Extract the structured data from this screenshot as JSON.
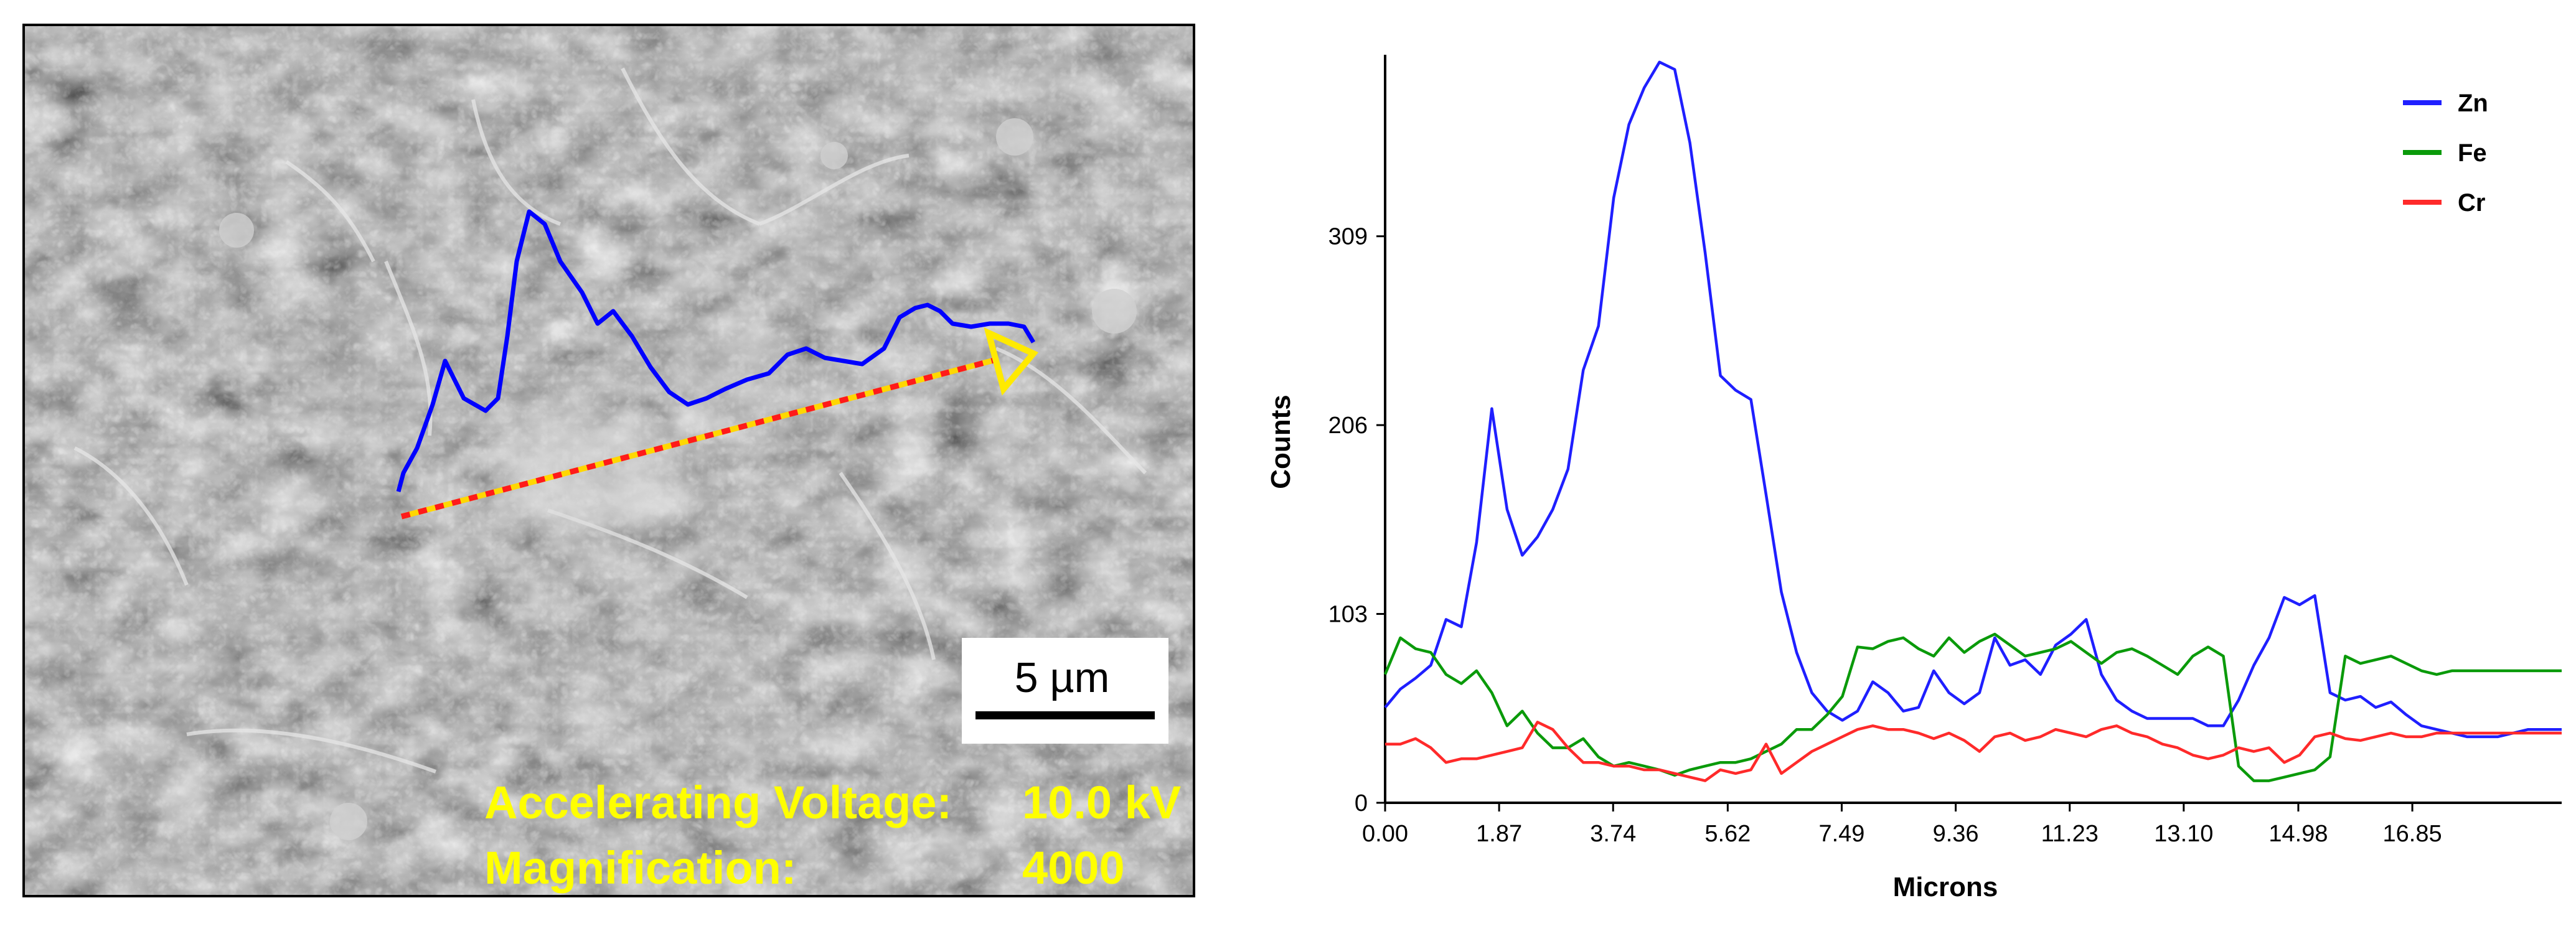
{
  "sem": {
    "scale_label": "5 µm",
    "voltage_label": "Accelerating Voltage:",
    "voltage_value": "10.0 kV",
    "magnification_label": "Magnification:",
    "magnification_value": "4000",
    "colors": {
      "text": "#ffff00",
      "profile": "#0000ff",
      "scan_line_a": "#ff2020",
      "scan_line_b": "#ffd700"
    }
  },
  "chart_data": {
    "type": "line",
    "title": "",
    "xlabel": "Microns",
    "ylabel": "Counts",
    "xlim": [
      0,
      19.3
    ],
    "ylim": [
      0,
      408
    ],
    "x_ticks": [
      0.0,
      1.87,
      3.74,
      5.62,
      7.49,
      9.36,
      11.23,
      13.1,
      14.98,
      16.85
    ],
    "x_tick_labels": [
      "0.00",
      "1.87",
      "3.74",
      "5.62",
      "7.49",
      "9.36",
      "11.23",
      "13.10",
      "14.98",
      "16.85"
    ],
    "y_ticks": [
      0,
      103,
      206,
      309
    ],
    "y_tick_labels": [
      "0",
      "103",
      "206",
      "309"
    ],
    "grid": false,
    "legend_position": "top-right",
    "series": [
      {
        "name": "Zn",
        "color": "#1f1fff",
        "x": [
          0.0,
          0.25,
          0.5,
          0.75,
          1.0,
          1.25,
          1.5,
          1.75,
          2.0,
          2.25,
          2.5,
          2.75,
          3.0,
          3.25,
          3.5,
          3.75,
          4.0,
          4.25,
          4.5,
          4.75,
          5.0,
          5.25,
          5.5,
          5.75,
          6.0,
          6.25,
          6.5,
          6.75,
          7.0,
          7.25,
          7.5,
          7.75,
          8.0,
          8.25,
          8.5,
          8.75,
          9.0,
          9.25,
          9.5,
          9.75,
          10.0,
          10.25,
          10.5,
          10.75,
          11.0,
          11.25,
          11.5,
          11.75,
          12.0,
          12.25,
          12.5,
          12.75,
          13.0,
          13.25,
          13.5,
          13.75,
          14.0,
          14.25,
          14.5,
          14.75,
          15.0,
          15.25,
          15.5,
          15.75,
          16.0,
          16.25,
          16.5,
          16.75,
          17.0,
          17.25,
          17.5,
          17.75,
          18.0,
          18.25,
          18.5,
          18.75,
          19.0,
          19.3
        ],
        "values": [
          52,
          62,
          68,
          75,
          100,
          96,
          142,
          215,
          160,
          135,
          145,
          160,
          182,
          236,
          260,
          330,
          370,
          390,
          404,
          400,
          360,
          300,
          233,
          225,
          220,
          168,
          115,
          82,
          60,
          50,
          45,
          50,
          66,
          60,
          50,
          52,
          72,
          60,
          54,
          60,
          90,
          75,
          78,
          70,
          86,
          92,
          100,
          70,
          56,
          50,
          46,
          46,
          46,
          46,
          42,
          42,
          56,
          75,
          90,
          112,
          108,
          113,
          60,
          56,
          58,
          52,
          55,
          48,
          42,
          40,
          38,
          36,
          36,
          36,
          38,
          40,
          40,
          40
        ]
      },
      {
        "name": "Fe",
        "color": "#0a9a0a",
        "x": [
          0.0,
          0.25,
          0.5,
          0.75,
          1.0,
          1.25,
          1.5,
          1.75,
          2.0,
          2.25,
          2.5,
          2.75,
          3.0,
          3.25,
          3.5,
          3.75,
          4.0,
          4.25,
          4.5,
          4.75,
          5.0,
          5.25,
          5.5,
          5.75,
          6.0,
          6.25,
          6.5,
          6.75,
          7.0,
          7.25,
          7.5,
          7.75,
          8.0,
          8.25,
          8.5,
          8.75,
          9.0,
          9.25,
          9.5,
          9.75,
          10.0,
          10.25,
          10.5,
          10.75,
          11.0,
          11.25,
          11.5,
          11.75,
          12.0,
          12.25,
          12.5,
          12.75,
          13.0,
          13.25,
          13.5,
          13.75,
          14.0,
          14.25,
          14.5,
          14.75,
          15.0,
          15.25,
          15.5,
          15.75,
          16.0,
          16.25,
          16.5,
          16.75,
          17.0,
          17.25,
          17.5,
          17.75,
          18.0,
          18.25,
          18.5,
          18.75,
          19.0,
          19.3
        ],
        "values": [
          70,
          90,
          84,
          82,
          70,
          65,
          72,
          60,
          42,
          50,
          38,
          30,
          30,
          35,
          25,
          20,
          22,
          20,
          18,
          15,
          18,
          20,
          22,
          22,
          24,
          28,
          32,
          40,
          40,
          48,
          58,
          85,
          84,
          88,
          90,
          84,
          80,
          90,
          82,
          88,
          92,
          86,
          80,
          82,
          84,
          88,
          82,
          76,
          82,
          84,
          80,
          75,
          70,
          80,
          85,
          80,
          20,
          12,
          12,
          14,
          16,
          18,
          25,
          80,
          76,
          78,
          80,
          76,
          72,
          70,
          72,
          72,
          72,
          72,
          72,
          72,
          72,
          72
        ]
      },
      {
        "name": "Cr",
        "color": "#ff2a2a",
        "x": [
          0.0,
          0.25,
          0.5,
          0.75,
          1.0,
          1.25,
          1.5,
          1.75,
          2.0,
          2.25,
          2.5,
          2.75,
          3.0,
          3.25,
          3.5,
          3.75,
          4.0,
          4.25,
          4.5,
          4.75,
          5.0,
          5.25,
          5.5,
          5.75,
          6.0,
          6.25,
          6.5,
          6.75,
          7.0,
          7.25,
          7.5,
          7.75,
          8.0,
          8.25,
          8.5,
          8.75,
          9.0,
          9.25,
          9.5,
          9.75,
          10.0,
          10.25,
          10.5,
          10.75,
          11.0,
          11.25,
          11.5,
          11.75,
          12.0,
          12.25,
          12.5,
          12.75,
          13.0,
          13.25,
          13.5,
          13.75,
          14.0,
          14.25,
          14.5,
          14.75,
          15.0,
          15.25,
          15.5,
          15.75,
          16.0,
          16.25,
          16.5,
          16.75,
          17.0,
          17.25,
          17.5,
          17.75,
          18.0,
          18.25,
          18.5,
          18.75,
          19.0,
          19.3
        ],
        "values": [
          32,
          32,
          35,
          30,
          22,
          24,
          24,
          26,
          28,
          30,
          44,
          40,
          30,
          22,
          22,
          20,
          20,
          18,
          18,
          16,
          14,
          12,
          18,
          16,
          18,
          32,
          16,
          22,
          28,
          32,
          36,
          40,
          42,
          40,
          40,
          38,
          35,
          38,
          34,
          28,
          36,
          38,
          34,
          36,
          40,
          38,
          36,
          40,
          42,
          38,
          36,
          32,
          30,
          26,
          24,
          26,
          30,
          28,
          30,
          22,
          26,
          36,
          38,
          35,
          34,
          36,
          38,
          36,
          36,
          38,
          38,
          38,
          38,
          38,
          38,
          38,
          38,
          38
        ]
      }
    ]
  }
}
